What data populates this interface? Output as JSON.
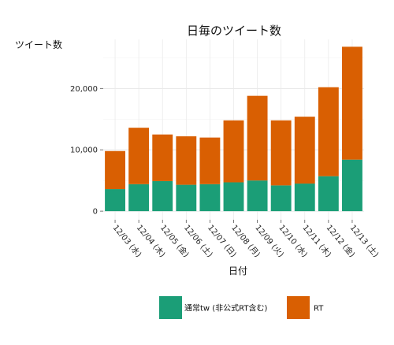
{
  "chart_data": {
    "type": "bar",
    "stacked": true,
    "title": "日毎のツイート数",
    "xlabel": "日付",
    "ylabel": "ツイート数",
    "categories": [
      "12/03 (水)",
      "12/04 (木)",
      "12/05 (金)",
      "12/06 (土)",
      "12/07 (日)",
      "12/08 (月)",
      "12/09 (火)",
      "12/10 (水)",
      "12/11 (木)",
      "12/12 (金)",
      "12/13 (土)"
    ],
    "series": [
      {
        "name": "通常tw (非公式RT含む)",
        "color": "#1b9e77",
        "values": [
          3600,
          4400,
          4900,
          4300,
          4400,
          4700,
          5000,
          4200,
          4500,
          5700,
          8400
        ]
      },
      {
        "name": "RT",
        "color": "#d95f02",
        "values": [
          6200,
          9200,
          7600,
          7900,
          7600,
          10100,
          13800,
          10600,
          10900,
          14500,
          18400
        ]
      }
    ],
    "yticks": [
      0,
      10000,
      20000
    ],
    "ytick_labels": [
      "0",
      "10,000",
      "20,000"
    ],
    "ylim": [
      -1400,
      28000
    ],
    "grid": true,
    "legend_position": "bottom"
  }
}
